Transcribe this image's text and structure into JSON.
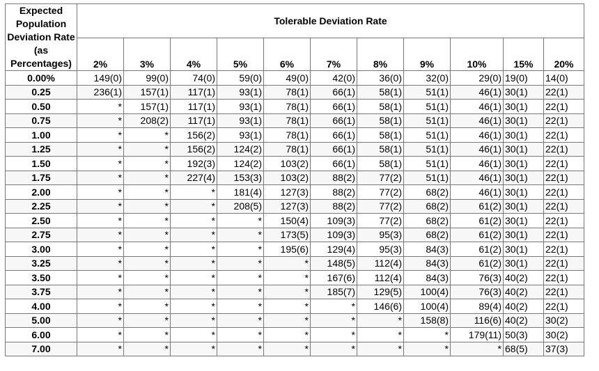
{
  "table": {
    "corner_header": "Expected Population Deviation Rate (as Percentages)",
    "group_header": "Tolerable Deviation Rate",
    "columns": [
      "2%",
      "3%",
      "4%",
      "5%",
      "6%",
      "7%",
      "8%",
      "9%",
      "10%",
      "15%",
      "20%"
    ],
    "rows": [
      {
        "label": "0.00%",
        "cells": [
          "149(0)",
          "99(0)",
          "74(0)",
          "59(0)",
          "49(0)",
          "42(0)",
          "36(0)",
          "32(0)",
          "29(0)",
          "19(0)",
          "14(0)"
        ]
      },
      {
        "label": "0.25",
        "cells": [
          "236(1)",
          "157(1)",
          "117(1)",
          "93(1)",
          "78(1)",
          "66(1)",
          "58(1)",
          "51(1)",
          "46(1)",
          "30(1)",
          "22(1)"
        ]
      },
      {
        "label": "0.50",
        "cells": [
          "*",
          "157(1)",
          "117(1)",
          "93(1)",
          "78(1)",
          "66(1)",
          "58(1)",
          "51(1)",
          "46(1)",
          "30(1)",
          "22(1)"
        ]
      },
      {
        "label": "0.75",
        "cells": [
          "*",
          "208(2)",
          "117(1)",
          "93(1)",
          "78(1)",
          "66(1)",
          "58(1)",
          "51(1)",
          "46(1)",
          "30(1)",
          "22(1)"
        ]
      },
      {
        "label": "1.00",
        "cells": [
          "*",
          "*",
          "156(2)",
          "93(1)",
          "78(1)",
          "66(1)",
          "58(1)",
          "51(1)",
          "46(1)",
          "30(1)",
          "22(1)"
        ]
      },
      {
        "label": "1.25",
        "cells": [
          "*",
          "*",
          "156(2)",
          "124(2)",
          "78(1)",
          "66(1)",
          "58(1)",
          "51(1)",
          "46(1)",
          "30(1)",
          "22(1)"
        ]
      },
      {
        "label": "1.50",
        "cells": [
          "*",
          "*",
          "192(3)",
          "124(2)",
          "103(2)",
          "66(1)",
          "58(1)",
          "51(1)",
          "46(1)",
          "30(1)",
          "22(1)"
        ]
      },
      {
        "label": "1.75",
        "cells": [
          "*",
          "*",
          "227(4)",
          "153(3)",
          "103(2)",
          "88(2)",
          "77(2)",
          "51(1)",
          "46(1)",
          "30(1)",
          "22(1)"
        ]
      },
      {
        "label": "2.00",
        "cells": [
          "*",
          "*",
          "*",
          "181(4)",
          "127(3)",
          "88(2)",
          "77(2)",
          "68(2)",
          "46(1)",
          "30(1)",
          "22(1)"
        ]
      },
      {
        "label": "2.25",
        "cells": [
          "*",
          "*",
          "*",
          "208(5)",
          "127(3)",
          "88(2)",
          "77(2)",
          "68(2)",
          "61(2)",
          "30(1)",
          "22(1)"
        ]
      },
      {
        "label": "2.50",
        "cells": [
          "*",
          "*",
          "*",
          "*",
          "150(4)",
          "109(3)",
          "77(2)",
          "68(2)",
          "61(2)",
          "30(1)",
          "22(1)"
        ]
      },
      {
        "label": "2.75",
        "cells": [
          "*",
          "*",
          "*",
          "*",
          "173(5)",
          "109(3)",
          "95(3)",
          "68(2)",
          "61(2)",
          "30(1)",
          "22(1)"
        ]
      },
      {
        "label": "3.00",
        "cells": [
          "*",
          "*",
          "*",
          "*",
          "195(6)",
          "129(4)",
          "95(3)",
          "84(3)",
          "61(2)",
          "30(1)",
          "22(1)"
        ]
      },
      {
        "label": "3.25",
        "cells": [
          "*",
          "*",
          "*",
          "*",
          "*",
          "148(5)",
          "112(4)",
          "84(3)",
          "61(2)",
          "30(1)",
          "22(1)"
        ]
      },
      {
        "label": "3.50",
        "cells": [
          "*",
          "*",
          "*",
          "*",
          "*",
          "167(6)",
          "112(4)",
          "84(3)",
          "76(3)",
          "40(2)",
          "22(1)"
        ]
      },
      {
        "label": "3.75",
        "cells": [
          "*",
          "*",
          "*",
          "*",
          "*",
          "185(7)",
          "129(5)",
          "100(4)",
          "76(3)",
          "40(2)",
          "22(1)"
        ]
      },
      {
        "label": "4.00",
        "cells": [
          "*",
          "*",
          "*",
          "*",
          "*",
          "*",
          "146(6)",
          "100(4)",
          "89(4)",
          "40(2)",
          "22(1)"
        ]
      },
      {
        "label": "5.00",
        "cells": [
          "*",
          "*",
          "*",
          "*",
          "*",
          "*",
          "*",
          "158(8)",
          "116(6)",
          "40(2)",
          "30(2)"
        ]
      },
      {
        "label": "6.00",
        "cells": [
          "*",
          "*",
          "*",
          "*",
          "*",
          "*",
          "*",
          "*",
          "179(11)",
          "50(3)",
          "30(2)"
        ]
      },
      {
        "label": "7.00",
        "cells": [
          "*",
          "*",
          "*",
          "*",
          "*",
          "*",
          "*",
          "*",
          "*",
          "68(5)",
          "37(3)"
        ]
      }
    ]
  }
}
